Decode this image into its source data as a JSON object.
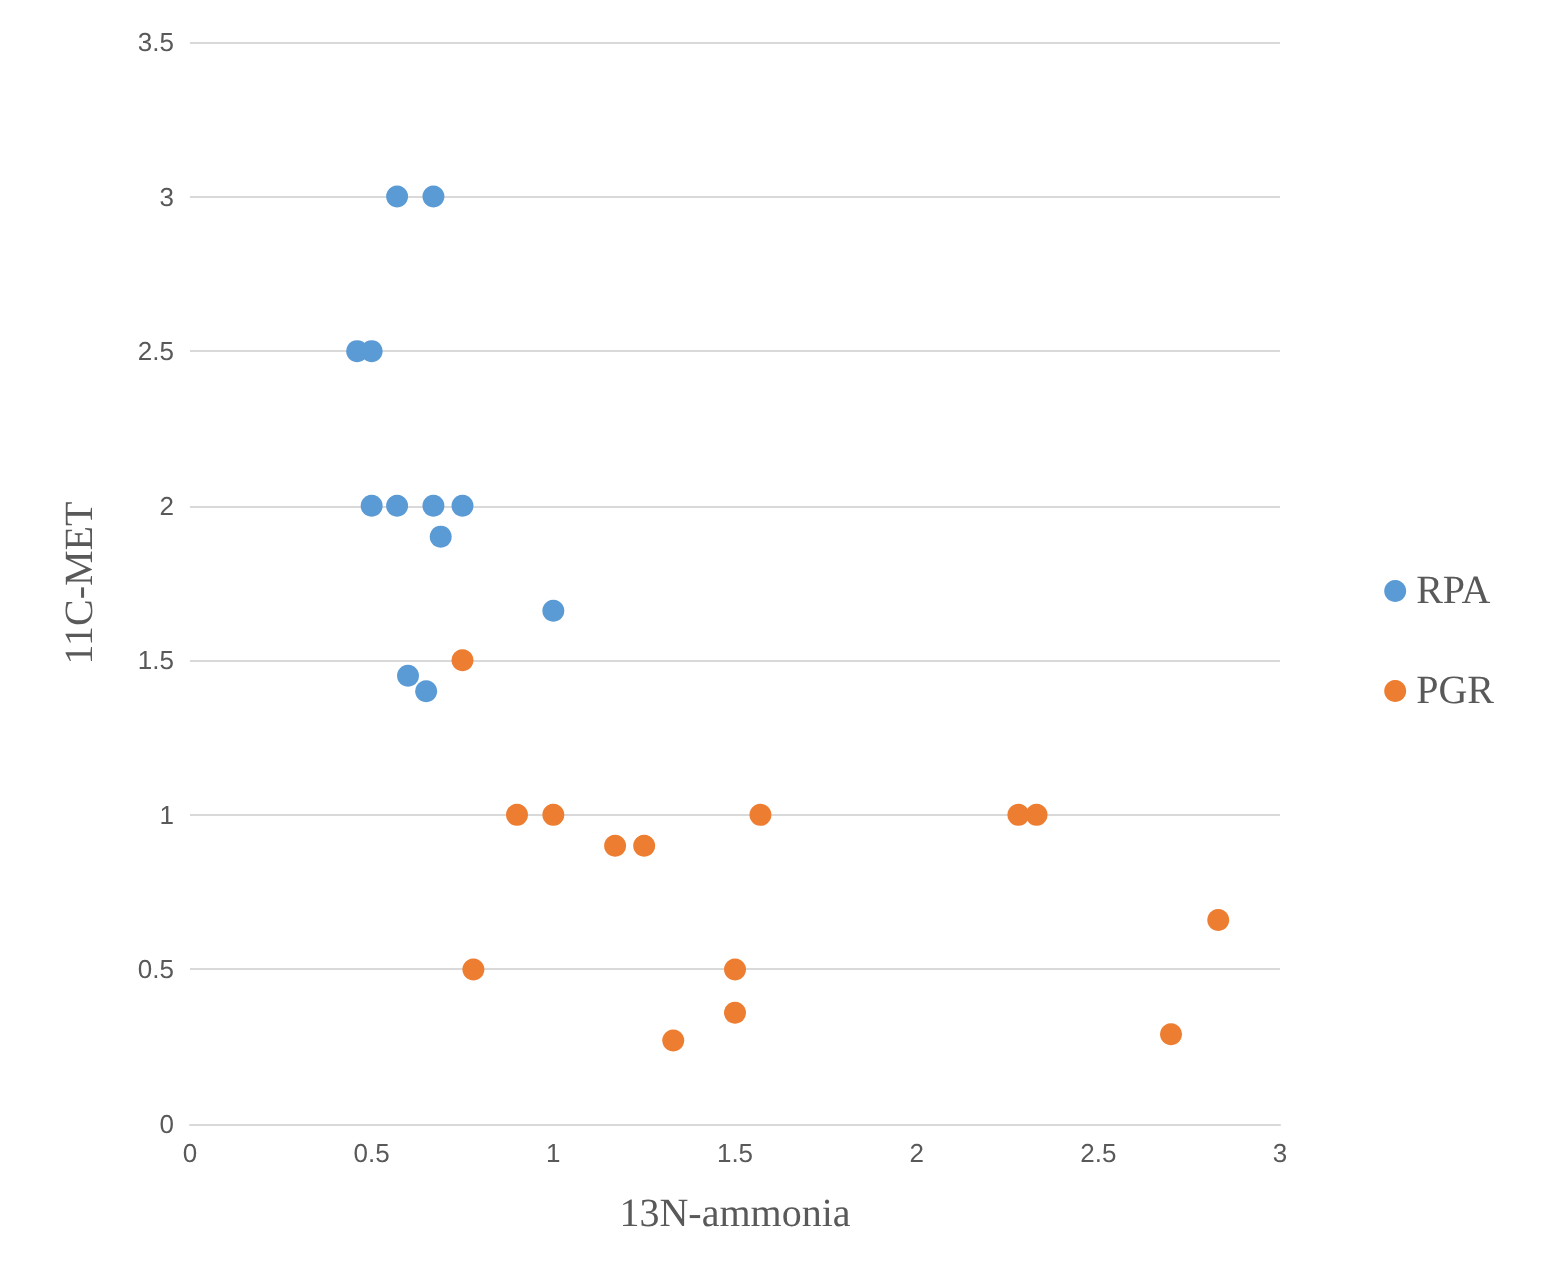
{
  "chart_data": {
    "type": "scatter",
    "xlabel": "13N-ammonia",
    "ylabel": "11C-MET",
    "xlim": [
      0,
      3
    ],
    "xticks": [
      0,
      0.5,
      1,
      1.5,
      2,
      2.5,
      3
    ],
    "ylim": [
      0,
      3.5
    ],
    "yticks": [
      0,
      0.5,
      1,
      1.5,
      2,
      2.5,
      3,
      3.5
    ],
    "grid": "y",
    "legend": "right",
    "marker": "circle",
    "series": [
      {
        "name": "RPA",
        "color": "#5b9bd5",
        "x": [
          0.57,
          0.67,
          0.46,
          0.5,
          0.5,
          0.57,
          0.67,
          0.75,
          0.69,
          1.0,
          0.6,
          0.65
        ],
        "values": [
          3,
          3,
          2.5,
          2.5,
          2,
          2,
          2,
          2,
          1.9,
          1.66,
          1.45,
          1.4
        ]
      },
      {
        "name": "PGR",
        "color": "#ed7d31",
        "x": [
          0.75,
          0.9,
          1.0,
          1.17,
          1.25,
          1.57,
          2.28,
          2.33,
          2.83,
          0.78,
          1.5,
          1.5,
          1.33,
          2.7
        ],
        "values": [
          1.5,
          1,
          1,
          0.9,
          0.9,
          1,
          1,
          1,
          0.66,
          0.5,
          0.5,
          0.36,
          0.27,
          0.29
        ]
      }
    ]
  }
}
